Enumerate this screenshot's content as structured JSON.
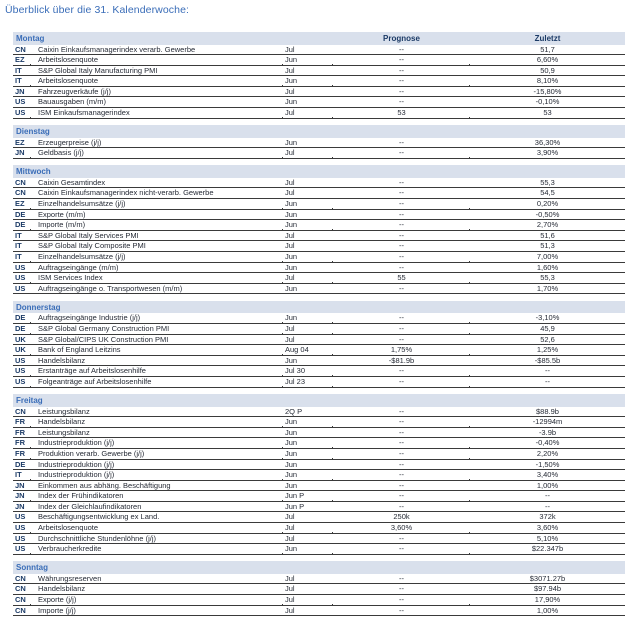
{
  "title": "Überblick über die 31. Kalenderwoche:",
  "columns": {
    "prognose": "Prognose",
    "zuletzt": "Zuletzt"
  },
  "colors": {
    "accent_blue": "#3a6db8",
    "navy": "#1b3a66",
    "header_bar_bg": "#d9e0ec",
    "row_text": "#262b36",
    "line": "#3a3a3a"
  },
  "sections": [
    {
      "day": "Montag",
      "show_column_headers": true,
      "rows": [
        {
          "code": "CN",
          "name": "Caixin Einkaufsmanagerindex verarb. Gewerbe",
          "period": "Jul",
          "prognose": "--",
          "zuletzt": "51,7"
        },
        {
          "code": "EZ",
          "name": "Arbeitslosenquote",
          "period": "Jun",
          "prognose": "--",
          "zuletzt": "6,60%"
        },
        {
          "code": "IT",
          "name": "S&P Global Italy Manufacturing PMI",
          "period": "Jul",
          "prognose": "--",
          "zuletzt": "50,9"
        },
        {
          "code": "IT",
          "name": "Arbeitslosenquote",
          "period": "Jun",
          "prognose": "--",
          "zuletzt": "8,10%"
        },
        {
          "code": "JN",
          "name": "Fahrzeugverkäufe (j/j)",
          "period": "Jul",
          "prognose": "--",
          "zuletzt": "-15,80%"
        },
        {
          "code": "US",
          "name": "Bauausgaben (m/m)",
          "period": "Jun",
          "prognose": "--",
          "zuletzt": "-0,10%"
        },
        {
          "code": "US",
          "name": "ISM Einkaufsmanagerindex",
          "period": "Jul",
          "prognose": "53",
          "zuletzt": "53"
        }
      ]
    },
    {
      "day": "Dienstag",
      "show_column_headers": false,
      "rows": [
        {
          "code": "EZ",
          "name": "Erzeugerpreise (j/j)",
          "period": "Jun",
          "prognose": "--",
          "zuletzt": "36,30%"
        },
        {
          "code": "JN",
          "name": "Geldbasis (j/j)",
          "period": "Jul",
          "prognose": "--",
          "zuletzt": "3,90%"
        }
      ]
    },
    {
      "day": "Mittwoch",
      "show_column_headers": false,
      "rows": [
        {
          "code": "CN",
          "name": "Caixin Gesamtindex",
          "period": "Jul",
          "prognose": "--",
          "zuletzt": "55,3"
        },
        {
          "code": "CN",
          "name": "Caixin Einkaufsmanagerindex nicht-verarb. Gewerbe",
          "period": "Jul",
          "prognose": "--",
          "zuletzt": "54,5"
        },
        {
          "code": "EZ",
          "name": "Einzelhandelsumsätze (j/j)",
          "period": "Jun",
          "prognose": "--",
          "zuletzt": "0,20%"
        },
        {
          "code": "DE",
          "name": "Exporte (m/m)",
          "period": "Jun",
          "prognose": "--",
          "zuletzt": "-0,50%"
        },
        {
          "code": "DE",
          "name": "Importe (m/m)",
          "period": "Jun",
          "prognose": "--",
          "zuletzt": "2,70%"
        },
        {
          "code": "IT",
          "name": "S&P Global Italy Services PMI",
          "period": "Jul",
          "prognose": "--",
          "zuletzt": "51,6"
        },
        {
          "code": "IT",
          "name": "S&P Global Italy Composite PMI",
          "period": "Jul",
          "prognose": "--",
          "zuletzt": "51,3"
        },
        {
          "code": "IT",
          "name": "Einzelhandelsumsätze (j/j)",
          "period": "Jun",
          "prognose": "--",
          "zuletzt": "7,00%"
        },
        {
          "code": "US",
          "name": "Auftragseingänge (m/m)",
          "period": "Jun",
          "prognose": "--",
          "zuletzt": "1,60%"
        },
        {
          "code": "US",
          "name": "ISM Services Index",
          "period": "Jul",
          "prognose": "55",
          "zuletzt": "55,3"
        },
        {
          "code": "US",
          "name": "Auftragseingänge o. Transportwesen (m/m)",
          "period": "Jun",
          "prognose": "--",
          "zuletzt": "1,70%"
        }
      ]
    },
    {
      "day": "Donnerstag",
      "show_column_headers": false,
      "rows": [
        {
          "code": "DE",
          "name": "Auftragseingänge Industrie (j/j)",
          "period": "Jun",
          "prognose": "--",
          "zuletzt": "-3,10%"
        },
        {
          "code": "DE",
          "name": "S&P Global Germany Construction PMI",
          "period": "Jul",
          "prognose": "--",
          "zuletzt": "45,9"
        },
        {
          "code": "UK",
          "name": "S&P Global/CIPS UK Construction PMI",
          "period": "Jul",
          "prognose": "--",
          "zuletzt": "52,6"
        },
        {
          "code": "UK",
          "name": "Bank of England Leitzins",
          "period": "Aug 04",
          "prognose": "1,75%",
          "zuletzt": "1,25%"
        },
        {
          "code": "US",
          "name": "Handelsbilanz",
          "period": "Jun",
          "prognose": "-$81.9b",
          "zuletzt": "-$85.5b"
        },
        {
          "code": "US",
          "name": "Erstanträge auf Arbeitslosenhilfe",
          "period": "Jul 30",
          "prognose": "--",
          "zuletzt": "--"
        },
        {
          "code": "US",
          "name": "Folgeanträge auf Arbeitslosenhilfe",
          "period": "Jul 23",
          "prognose": "--",
          "zuletzt": "--"
        }
      ]
    },
    {
      "day": "Freitag",
      "show_column_headers": false,
      "rows": [
        {
          "code": "CN",
          "name": "Leistungsbilanz",
          "period": "2Q P",
          "prognose": "--",
          "zuletzt": "$88.9b"
        },
        {
          "code": "FR",
          "name": "Handelsbilanz",
          "period": "Jun",
          "prognose": "--",
          "zuletzt": "-12994m"
        },
        {
          "code": "FR",
          "name": "Leistungsbilanz",
          "period": "Jun",
          "prognose": "--",
          "zuletzt": "-3.9b"
        },
        {
          "code": "FR",
          "name": "Industrieproduktion (j/j)",
          "period": "Jun",
          "prognose": "--",
          "zuletzt": "-0,40%"
        },
        {
          "code": "FR",
          "name": "Produktion verarb. Gewerbe (j/j)",
          "period": "Jun",
          "prognose": "--",
          "zuletzt": "2,20%"
        },
        {
          "code": "DE",
          "name": "Industrieproduktion (j/j)",
          "period": "Jun",
          "prognose": "--",
          "zuletzt": "-1,50%"
        },
        {
          "code": "IT",
          "name": "Industrieproduktion (j/j)",
          "period": "Jun",
          "prognose": "--",
          "zuletzt": "3,40%"
        },
        {
          "code": "JN",
          "name": "Einkommen aus abhäng. Beschäftigung",
          "period": "Jun",
          "prognose": "--",
          "zuletzt": "1,00%"
        },
        {
          "code": "JN",
          "name": "Index der Frühindikatoren",
          "period": "Jun P",
          "prognose": "--",
          "zuletzt": "--"
        },
        {
          "code": "JN",
          "name": "Index der Gleichlaufindikatoren",
          "period": "Jun P",
          "prognose": "--",
          "zuletzt": "--"
        },
        {
          "code": "US",
          "name": "Beschäftigungsentwicklung ex Land.",
          "period": "Jul",
          "prognose": "250k",
          "zuletzt": "372k"
        },
        {
          "code": "US",
          "name": "Arbeitslosenquote",
          "period": "Jul",
          "prognose": "3,60%",
          "zuletzt": "3,60%"
        },
        {
          "code": "US",
          "name": "Durchschnittliche Stundenlöhne (j/j)",
          "period": "Jul",
          "prognose": "--",
          "zuletzt": "5,10%"
        },
        {
          "code": "US",
          "name": "Verbraucherkredite",
          "period": "Jun",
          "prognose": "--",
          "zuletzt": "$22.347b"
        }
      ]
    },
    {
      "day": "Sonntag",
      "show_column_headers": false,
      "rows": [
        {
          "code": "CN",
          "name": "Währungsreserven",
          "period": "Jul",
          "prognose": "--",
          "zuletzt": "$3071.27b"
        },
        {
          "code": "CN",
          "name": "Handelsbilanz",
          "period": "Jul",
          "prognose": "--",
          "zuletzt": "$97.94b"
        },
        {
          "code": "CN",
          "name": "Exporte (j/j)",
          "period": "Jul",
          "prognose": "--",
          "zuletzt": "17,90%"
        },
        {
          "code": "CN",
          "name": "Importe (j/j)",
          "period": "Jul",
          "prognose": "--",
          "zuletzt": "1,00%"
        }
      ]
    }
  ]
}
